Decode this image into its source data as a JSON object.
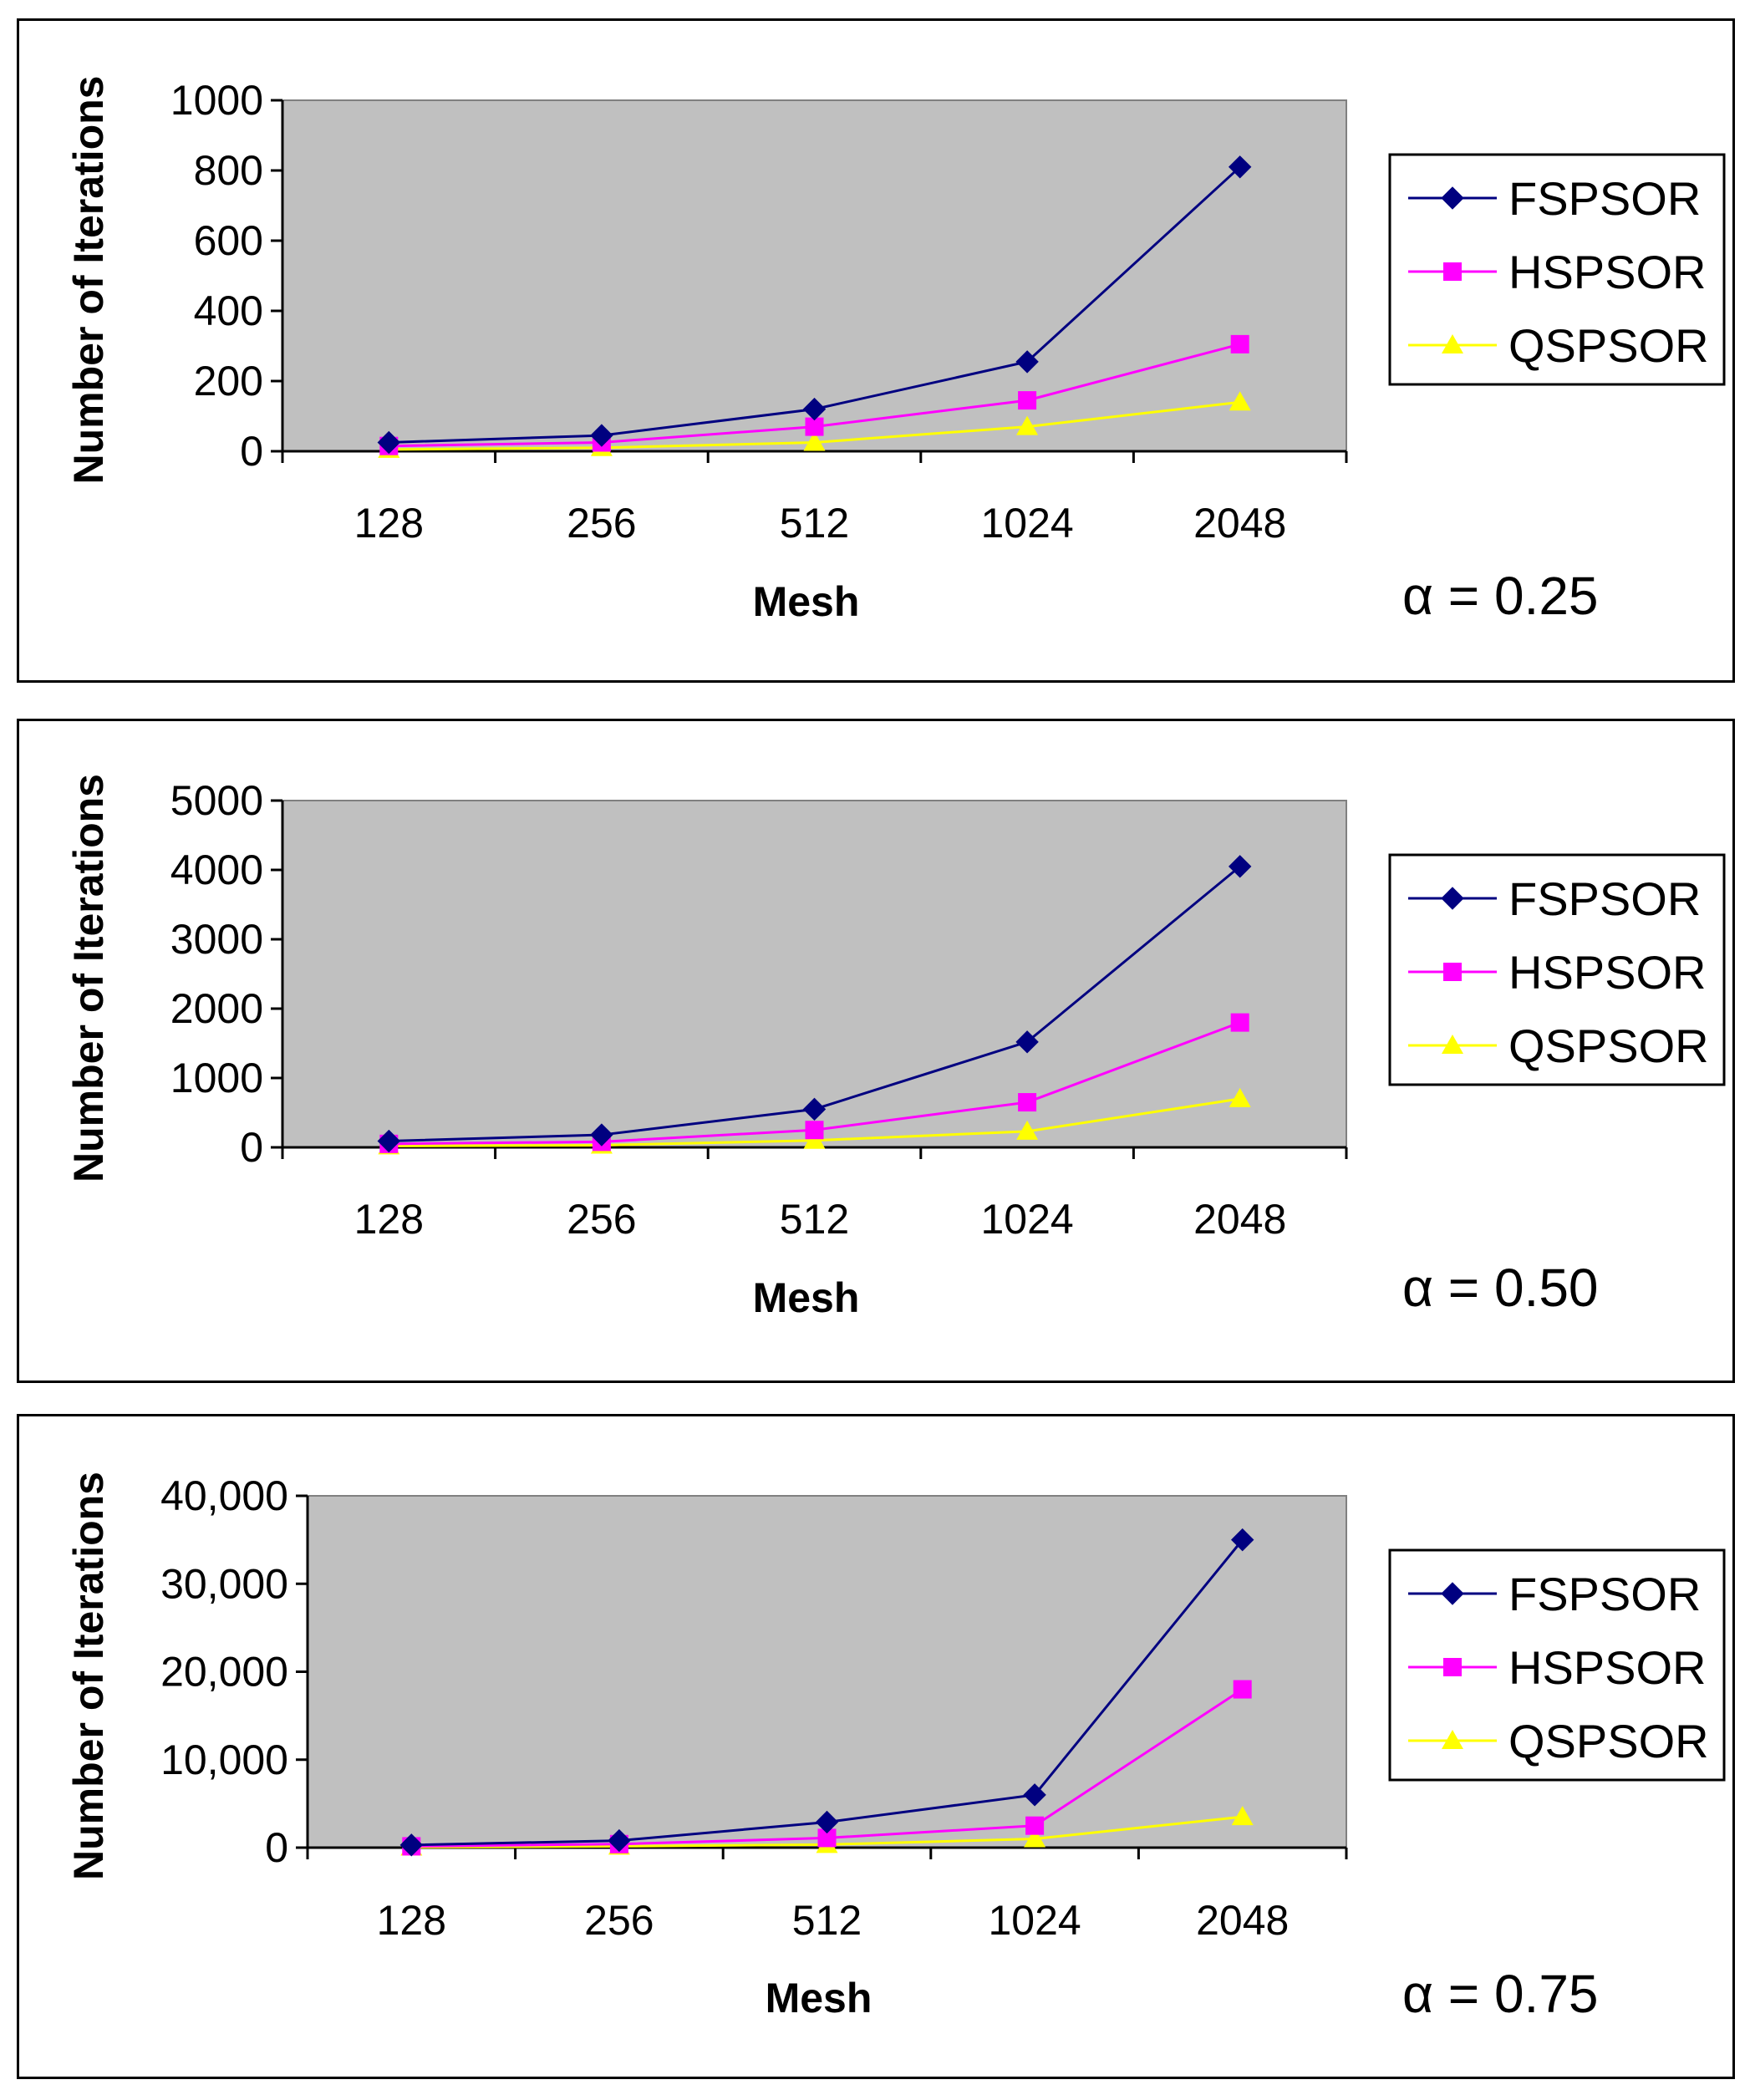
{
  "chart_data": [
    {
      "type": "line",
      "categories": [
        "128",
        "256",
        "512",
        "1024",
        "2048"
      ],
      "series": [
        {
          "name": "FSPSOR",
          "values": [
            25,
            45,
            120,
            255,
            810
          ]
        },
        {
          "name": "HSPSOR",
          "values": [
            15,
            25,
            70,
            145,
            305
          ]
        },
        {
          "name": "QSPSOR",
          "values": [
            5,
            10,
            25,
            70,
            140
          ]
        }
      ],
      "xlabel": "Mesh",
      "ylabel": "Number of Iterations",
      "ylim": [
        0,
        1000
      ],
      "yticks": [
        "0",
        "200",
        "400",
        "600",
        "800",
        "1000"
      ],
      "alpha_label": "α = 0.25",
      "legend": "right",
      "grid": false
    },
    {
      "type": "line",
      "categories": [
        "128",
        "256",
        "512",
        "1024",
        "2048"
      ],
      "series": [
        {
          "name": "FSPSOR",
          "values": [
            90,
            180,
            550,
            1520,
            4050
          ]
        },
        {
          "name": "HSPSOR",
          "values": [
            50,
            80,
            250,
            650,
            1800
          ]
        },
        {
          "name": "QSPSOR",
          "values": [
            20,
            30,
            100,
            230,
            700
          ]
        }
      ],
      "xlabel": "Mesh",
      "ylabel": "Number of Iterations",
      "ylim": [
        0,
        5000
      ],
      "yticks": [
        "0",
        "1000",
        "2000",
        "3000",
        "4000",
        "5000"
      ],
      "alpha_label": "α = 0.50",
      "legend": "right",
      "grid": false
    },
    {
      "type": "line",
      "categories": [
        "128",
        "256",
        "512",
        "1024",
        "2048"
      ],
      "series": [
        {
          "name": "FSPSOR",
          "values": [
            300,
            800,
            2900,
            6000,
            35000
          ]
        },
        {
          "name": "HSPSOR",
          "values": [
            150,
            400,
            1100,
            2500,
            18000
          ]
        },
        {
          "name": "QSPSOR",
          "values": [
            50,
            150,
            350,
            1000,
            3500
          ]
        }
      ],
      "xlabel": "Mesh",
      "ylabel": "Number of Iterations",
      "ylim": [
        0,
        40000
      ],
      "yticks": [
        "0",
        "10,000",
        "20,000",
        "30,000",
        "40,000"
      ],
      "alpha_label": "α = 0.75",
      "legend": "right",
      "grid": false
    }
  ],
  "colors": {
    "plot_bg": "#c0c0c0",
    "FSPSOR": "#000080",
    "HSPSOR": "#ff00ff",
    "QSPSOR": "#ffff00"
  },
  "markers": {
    "FSPSOR": "diamond",
    "HSPSOR": "square",
    "QSPSOR": "triangle"
  }
}
